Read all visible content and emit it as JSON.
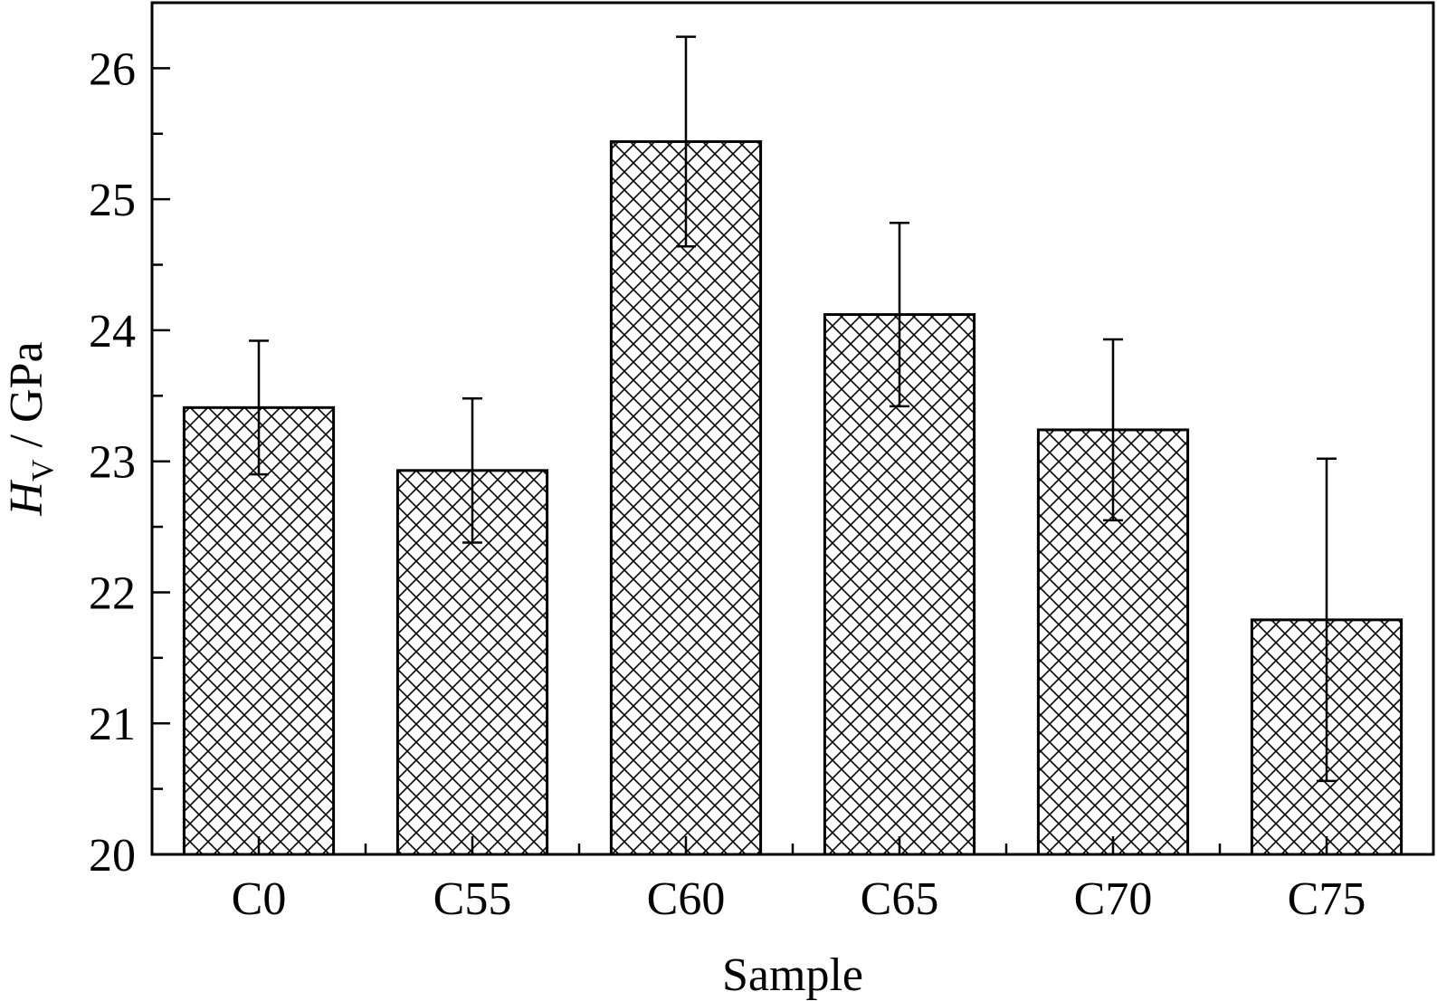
{
  "chart_data": {
    "type": "bar",
    "title": "",
    "xlabel": "Sample",
    "ylabel": {
      "main": "H",
      "sub": "V",
      "rest": " / GPa"
    },
    "categories": [
      "C0",
      "C55",
      "C60",
      "C65",
      "C70",
      "C75"
    ],
    "values": [
      23.41,
      22.93,
      25.44,
      24.12,
      23.24,
      21.79
    ],
    "error": [
      0.51,
      0.55,
      0.8,
      0.7,
      0.69,
      1.23
    ],
    "ylim": [
      20,
      26.5
    ],
    "yticks": [
      20,
      21,
      22,
      23,
      24,
      25,
      26
    ],
    "yticks_minor": [
      20.5,
      21.5,
      22.5,
      23.5,
      24.5,
      25.5
    ],
    "bar_fill": "crosshatch",
    "colors": {
      "ink": "#000000",
      "background": "#ffffff"
    },
    "grid": false,
    "legend": "none"
  }
}
